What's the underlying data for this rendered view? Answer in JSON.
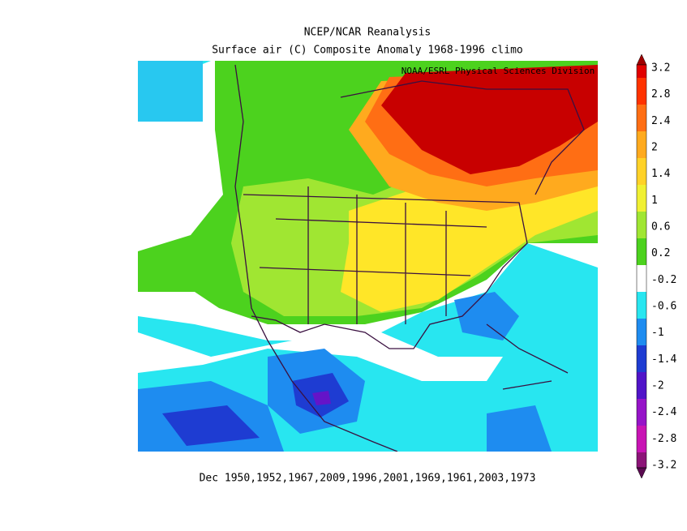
{
  "title": "NCEP/NCAR Reanalysis",
  "subtitle": "Surface air (C) Composite Anomaly 1968-1996 climo",
  "attribution": "NOAA/ESRL Physical Sciences Division",
  "footer": "Dec 1950,1952,1967,2009,1996,2001,1969,1961,2003,1973",
  "colorbar": {
    "labels": [
      3.2,
      2.8,
      2.4,
      2,
      1.4,
      1,
      0.6,
      0.2,
      -0.2,
      -0.6,
      -1,
      -1.4,
      -2,
      -2.4,
      -2.8,
      -3.2
    ]
  }
}
